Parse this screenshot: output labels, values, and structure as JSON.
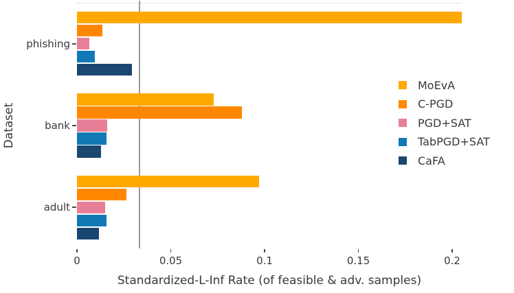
{
  "chart_data": {
    "type": "bar",
    "orientation": "horizontal",
    "title": "",
    "xlabel": "Standardized-L-Inf Rate (of feasible & adv. samples)",
    "ylabel": "Dataset",
    "categories": [
      "phishing",
      "bank",
      "adult"
    ],
    "series": [
      {
        "name": "MoEvA",
        "color": "#FFA800",
        "values": [
          0.205,
          0.073,
          0.097
        ]
      },
      {
        "name": "C-PGD",
        "color": "#FF8700",
        "values": [
          0.0136,
          0.088,
          0.0264
        ]
      },
      {
        "name": "PGD+SAT",
        "color": "#E87F98",
        "values": [
          0.0066,
          0.0161,
          0.015
        ]
      },
      {
        "name": "TabPGD+SAT",
        "color": "#1179B5",
        "values": [
          0.0095,
          0.0158,
          0.0157
        ]
      },
      {
        "name": "CaFA",
        "color": "#1A466F",
        "values": [
          0.0293,
          0.0128,
          0.0117
        ]
      }
    ],
    "x_ticks": [
      0,
      0.05,
      0.1,
      0.15,
      0.2
    ],
    "x_tick_labels": [
      "0",
      "0.05",
      "0.1",
      "0.15",
      "0.2"
    ],
    "xlim": [
      0,
      0.2051
    ],
    "reference_line_x": 0.0333,
    "grid": false,
    "legend_position": "right-inside"
  },
  "colors": {
    "reference_line": "#9b9b9b",
    "axis_text": "#383838",
    "plot_top_border": "#e4e4e4",
    "background": "#ffffff"
  }
}
